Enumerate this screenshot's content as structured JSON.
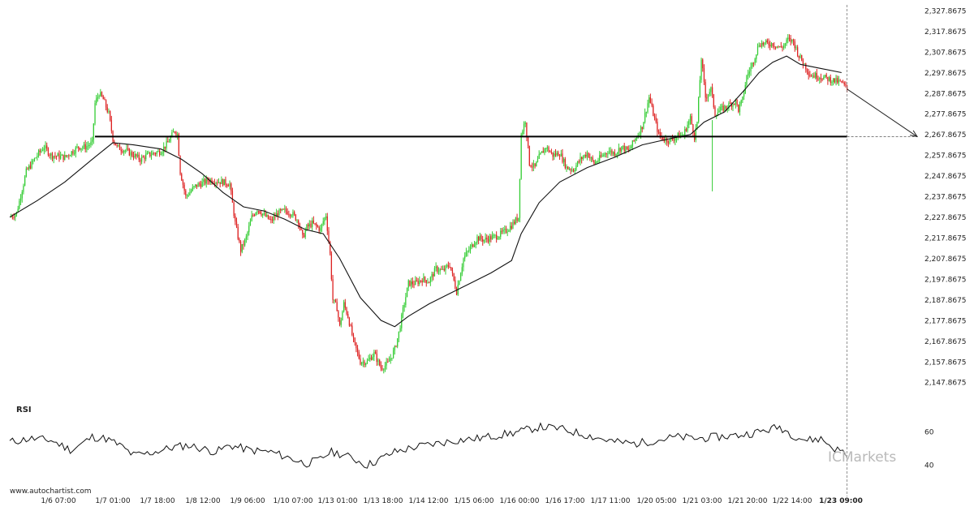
{
  "chart_data": {
    "type": "candlestick",
    "price_axis": {
      "ticks": [
        "2,327.8675",
        "2,317.8675",
        "2,307.8675",
        "2,297.8675",
        "2,287.8675",
        "2,277.8675",
        "2,267.8675",
        "2,257.8675",
        "2,247.8675",
        "2,237.8675",
        "2,227.8675",
        "2,217.8675",
        "2,207.8675",
        "2,197.8675",
        "2,187.8675",
        "2,177.8675",
        "2,167.8675",
        "2,157.8675",
        "2,147.8675"
      ],
      "range": [
        2145.8,
        2330.0
      ]
    },
    "time_axis": {
      "labels": [
        "1/6 07:00",
        "1/7 01:00",
        "1/7 18:00",
        "1/8 12:00",
        "1/9 06:00",
        "1/10 07:00",
        "1/13 01:00",
        "1/13 18:00",
        "1/14 12:00",
        "1/15 06:00",
        "1/16 00:00",
        "1/16 17:00",
        "1/17 11:00",
        "1/20 05:00",
        "1/21 03:00",
        "1/21 20:00",
        "1/22 14:00",
        "1/23 09:00"
      ],
      "highlighted": "1/23 09:00"
    },
    "price_path": [
      [
        0,
        2228
      ],
      [
        5,
        2230
      ],
      [
        12,
        2250
      ],
      [
        20,
        2258
      ],
      [
        25,
        2262
      ],
      [
        30,
        2258
      ],
      [
        40,
        2257
      ],
      [
        50,
        2262
      ],
      [
        55,
        2262
      ],
      [
        60,
        2264
      ],
      [
        62,
        2283
      ],
      [
        65,
        2288
      ],
      [
        68,
        2285
      ],
      [
        72,
        2278
      ],
      [
        75,
        2266
      ],
      [
        78,
        2262
      ],
      [
        85,
        2260
      ],
      [
        90,
        2258
      ],
      [
        95,
        2256
      ],
      [
        100,
        2258
      ],
      [
        110,
        2260
      ],
      [
        115,
        2264
      ],
      [
        120,
        2270
      ],
      [
        122,
        2268
      ],
      [
        124,
        2250
      ],
      [
        128,
        2238
      ],
      [
        135,
        2243
      ],
      [
        145,
        2246
      ],
      [
        155,
        2245
      ],
      [
        160,
        2244
      ],
      [
        164,
        2225
      ],
      [
        168,
        2212
      ],
      [
        172,
        2218
      ],
      [
        176,
        2228
      ],
      [
        180,
        2232
      ],
      [
        185,
        2229
      ],
      [
        190,
        2226
      ],
      [
        195,
        2230
      ],
      [
        200,
        2231
      ],
      [
        205,
        2230
      ],
      [
        210,
        2226
      ],
      [
        213,
        2218
      ],
      [
        216,
        2223
      ],
      [
        220,
        2225
      ],
      [
        226,
        2222
      ],
      [
        228,
        2226
      ],
      [
        230,
        2229
      ],
      [
        233,
        2210
      ],
      [
        235,
        2188
      ],
      [
        238,
        2184
      ],
      [
        240,
        2175
      ],
      [
        243,
        2186
      ],
      [
        246,
        2180
      ],
      [
        250,
        2168
      ],
      [
        255,
        2158
      ],
      [
        260,
        2158
      ],
      [
        265,
        2162
      ],
      [
        270,
        2155
      ],
      [
        275,
        2157
      ],
      [
        280,
        2164
      ],
      [
        283,
        2172
      ],
      [
        286,
        2183
      ],
      [
        290,
        2196
      ],
      [
        295,
        2196
      ],
      [
        300,
        2198
      ],
      [
        305,
        2197
      ],
      [
        310,
        2203
      ],
      [
        315,
        2202
      ],
      [
        320,
        2205
      ],
      [
        325,
        2192
      ],
      [
        330,
        2208
      ],
      [
        335,
        2213
      ],
      [
        340,
        2218
      ],
      [
        345,
        2217
      ],
      [
        350,
        2218
      ],
      [
        355,
        2219
      ],
      [
        360,
        2221
      ],
      [
        365,
        2224
      ],
      [
        370,
        2228
      ],
      [
        372,
        2268
      ],
      [
        375,
        2275
      ],
      [
        378,
        2254
      ],
      [
        382,
        2252
      ],
      [
        385,
        2257
      ],
      [
        390,
        2262
      ],
      [
        395,
        2258
      ],
      [
        400,
        2259
      ],
      [
        405,
        2252
      ],
      [
        410,
        2251
      ],
      [
        415,
        2256
      ],
      [
        420,
        2259
      ],
      [
        425,
        2254
      ],
      [
        430,
        2257
      ],
      [
        435,
        2260
      ],
      [
        440,
        2259
      ],
      [
        445,
        2262
      ],
      [
        450,
        2260
      ],
      [
        455,
        2266
      ],
      [
        460,
        2272
      ],
      [
        465,
        2286
      ],
      [
        468,
        2278
      ],
      [
        472,
        2268
      ],
      [
        475,
        2266
      ],
      [
        480,
        2265
      ],
      [
        485,
        2267
      ],
      [
        490,
        2268
      ],
      [
        495,
        2276
      ],
      [
        498,
        2267
      ],
      [
        500,
        2274
      ],
      [
        503,
        2305
      ],
      [
        506,
        2286
      ],
      [
        510,
        2290
      ],
      [
        513,
        2278
      ],
      [
        517,
        2280
      ],
      [
        520,
        2281
      ],
      [
        525,
        2283
      ],
      [
        528,
        2284
      ],
      [
        530,
        2280
      ],
      [
        533,
        2285
      ],
      [
        536,
        2296
      ],
      [
        540,
        2302
      ],
      [
        545,
        2312
      ],
      [
        550,
        2312
      ],
      [
        555,
        2312
      ],
      [
        560,
        2310
      ],
      [
        563,
        2311
      ],
      [
        566,
        2314
      ],
      [
        570,
        2313
      ],
      [
        574,
        2306
      ],
      [
        578,
        2302
      ],
      [
        582,
        2297
      ],
      [
        590,
        2296
      ],
      [
        595,
        2295
      ],
      [
        600,
        2294
      ],
      [
        605,
        2293
      ],
      [
        609,
        2290
      ]
    ],
    "moving_average": [
      [
        0,
        2228
      ],
      [
        20,
        2236
      ],
      [
        40,
        2245
      ],
      [
        60,
        2256
      ],
      [
        75,
        2264
      ],
      [
        90,
        2263
      ],
      [
        110,
        2261
      ],
      [
        125,
        2256
      ],
      [
        140,
        2249
      ],
      [
        155,
        2240
      ],
      [
        170,
        2233
      ],
      [
        185,
        2231
      ],
      [
        200,
        2227
      ],
      [
        215,
        2222
      ],
      [
        228,
        2220
      ],
      [
        240,
        2208
      ],
      [
        255,
        2189
      ],
      [
        270,
        2178
      ],
      [
        280,
        2175
      ],
      [
        290,
        2180
      ],
      [
        305,
        2186
      ],
      [
        320,
        2191
      ],
      [
        335,
        2196
      ],
      [
        350,
        2201
      ],
      [
        365,
        2207
      ],
      [
        372,
        2220
      ],
      [
        385,
        2235
      ],
      [
        400,
        2245
      ],
      [
        420,
        2252
      ],
      [
        440,
        2257
      ],
      [
        460,
        2263
      ],
      [
        480,
        2266
      ],
      [
        495,
        2268
      ],
      [
        505,
        2274
      ],
      [
        520,
        2279
      ],
      [
        535,
        2290
      ],
      [
        545,
        2298
      ],
      [
        555,
        2303
      ],
      [
        565,
        2306
      ],
      [
        575,
        2302
      ],
      [
        590,
        2300
      ],
      [
        605,
        2298
      ]
    ],
    "support_line": {
      "price": 2267.0,
      "from": 62,
      "to": 609
    },
    "forecast_arrow": {
      "from": [
        609,
        2290
      ],
      "to": [
        660,
        2267.0
      ]
    },
    "rsi": {
      "label": "RSI",
      "levels": [
        "60",
        "40"
      ],
      "range": [
        33,
        70
      ],
      "values": [
        [
          0,
          54
        ],
        [
          15,
          56
        ],
        [
          30,
          55
        ],
        [
          45,
          49
        ],
        [
          60,
          57
        ],
        [
          70,
          56
        ],
        [
          80,
          52
        ],
        [
          90,
          46
        ],
        [
          100,
          47
        ],
        [
          110,
          49
        ],
        [
          120,
          51
        ],
        [
          130,
          52
        ],
        [
          140,
          50
        ],
        [
          150,
          48
        ],
        [
          160,
          52
        ],
        [
          175,
          49
        ],
        [
          190,
          48
        ],
        [
          205,
          44
        ],
        [
          215,
          41
        ],
        [
          225,
          43
        ],
        [
          233,
          48
        ],
        [
          240,
          47
        ],
        [
          250,
          44
        ],
        [
          260,
          40
        ],
        [
          270,
          44
        ],
        [
          280,
          48
        ],
        [
          295,
          51
        ],
        [
          310,
          53
        ],
        [
          325,
          55
        ],
        [
          340,
          56
        ],
        [
          355,
          58
        ],
        [
          370,
          60
        ],
        [
          385,
          63
        ],
        [
          400,
          62
        ],
        [
          410,
          60
        ],
        [
          425,
          57
        ],
        [
          440,
          54
        ],
        [
          455,
          53
        ],
        [
          470,
          55
        ],
        [
          485,
          57
        ],
        [
          500,
          56
        ],
        [
          515,
          57
        ],
        [
          530,
          58
        ],
        [
          545,
          60
        ],
        [
          560,
          63
        ],
        [
          570,
          58
        ],
        [
          580,
          55
        ],
        [
          590,
          56
        ],
        [
          600,
          50
        ],
        [
          609,
          47
        ]
      ]
    }
  },
  "watermark": "www.autochartist.com",
  "brand": {
    "prefix": "IC",
    "name": "Markets"
  }
}
